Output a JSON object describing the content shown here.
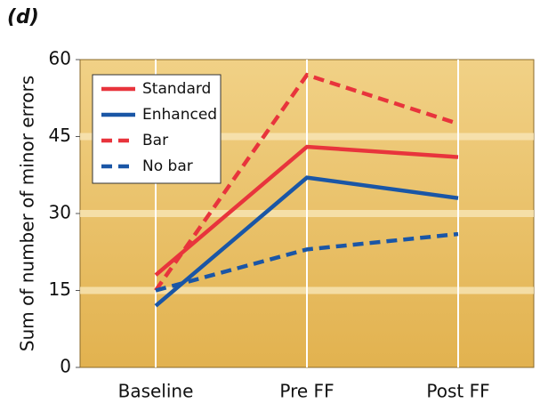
{
  "chart_data": {
    "type": "line",
    "panel_label": "(d)",
    "y_label": "Sum of number of minor errors",
    "categories": [
      "Baseline",
      "Pre FF",
      "Post FF"
    ],
    "series": [
      {
        "name": "Standard",
        "color": "#e8343c",
        "dashed": false,
        "values": [
          18,
          43,
          41
        ]
      },
      {
        "name": "Enhanced",
        "color": "#1a56a6",
        "dashed": false,
        "values": [
          12,
          37,
          33
        ]
      },
      {
        "name": "Bar",
        "color": "#e8343c",
        "dashed": true,
        "values": [
          15,
          57,
          47.5
        ]
      },
      {
        "name": "No bar",
        "color": "#1a56a6",
        "dashed": true,
        "values": [
          15,
          23,
          26
        ]
      }
    ],
    "ylim": [
      0,
      60
    ],
    "yticks": [
      0,
      15,
      30,
      45,
      60
    ],
    "grid": true,
    "legend": "upper left"
  }
}
